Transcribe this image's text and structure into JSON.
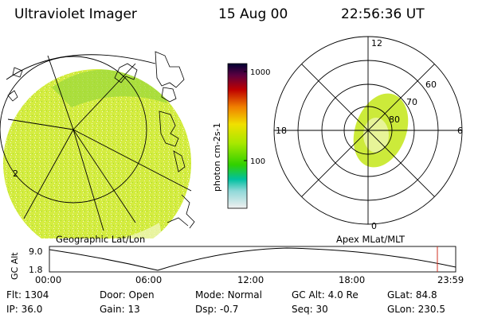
{
  "header": {
    "instrument": "Ultraviolet Imager",
    "date": "15 Aug 00",
    "time": "22:56:36 UT"
  },
  "colorbar": {
    "unit_label": "photon cm-2s-1",
    "tick_labels": [
      "1000",
      "100"
    ],
    "colors": [
      "#000033",
      "#220044",
      "#5b0040",
      "#8a0020",
      "#bf0000",
      "#e03000",
      "#f06000",
      "#f59000",
      "#f7c000",
      "#f0e000",
      "#d8f000",
      "#a8e800",
      "#70dc00",
      "#30d000",
      "#00c840",
      "#00c0a0",
      "#30c8c8",
      "#8fd8d8",
      "#c8e8e8",
      "#f0f0f0"
    ]
  },
  "left_map": {
    "label": "Geographic Lat/Lon",
    "edge_label": "2",
    "image_color": "#c8e83a"
  },
  "polar_plot": {
    "label": "Apex MLat/MLT",
    "mlt_labels": {
      "top": "12",
      "left": "18",
      "right": "6",
      "bottom": "0"
    },
    "lat_labels": [
      "60",
      "70",
      "80"
    ]
  },
  "altitude_plot": {
    "ylabel": "GC Alt",
    "y_ticks": [
      "9.0",
      "1.8"
    ],
    "x_ticks": [
      "00:00",
      "06:00",
      "12:00",
      "18:00",
      "23:59"
    ],
    "marker_color": "#d03020"
  },
  "status": {
    "rows": [
      [
        {
          "label": "Flt:",
          "value": "1304"
        },
        {
          "label": "Door:",
          "value": "Open"
        },
        {
          "label": "Mode:",
          "value": "Normal"
        },
        {
          "label": "GC Alt:",
          "value": "4.0 Re"
        },
        {
          "label": "GLat:",
          "value": "84.8"
        }
      ],
      [
        {
          "label": "IP:",
          "value": "36.0"
        },
        {
          "label": "Gain:",
          "value": "13"
        },
        {
          "label": "Dsp:",
          "value": "-0.7"
        },
        {
          "label": "Seq:",
          "value": "30"
        },
        {
          "label": "GLon:",
          "value": "230.5"
        }
      ]
    ]
  }
}
